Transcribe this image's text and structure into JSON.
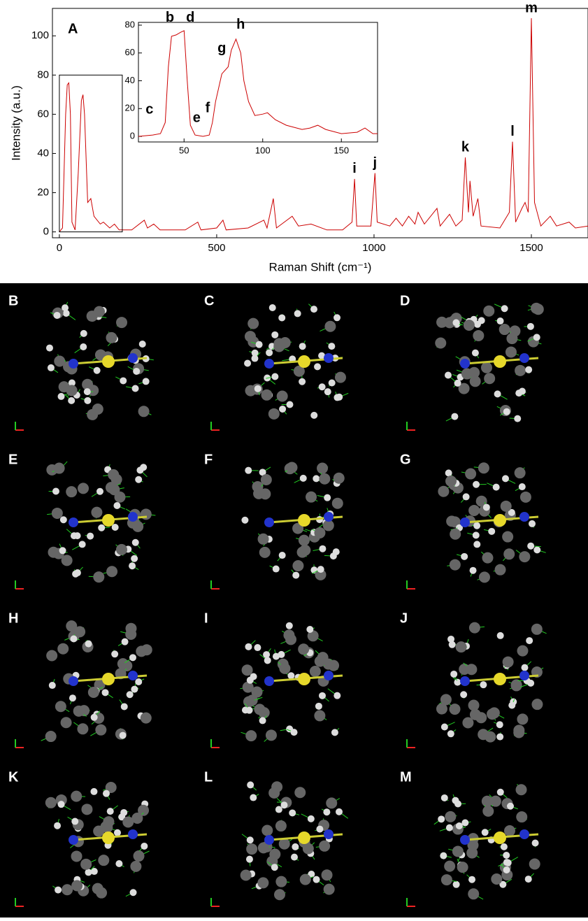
{
  "chart_data": [
    {
      "type": "line",
      "color": "#cc0000",
      "panel_label": "A",
      "x_label": "Raman Shift (cm⁻¹)",
      "y_label": "Intensity (a.u.)",
      "x": [
        0,
        10,
        20,
        25,
        30,
        35,
        40,
        50,
        60,
        70,
        75,
        80,
        90,
        100,
        110,
        130,
        140,
        160,
        175,
        190,
        230,
        270,
        280,
        300,
        320,
        400,
        440,
        450,
        500,
        520,
        530,
        600,
        650,
        660,
        680,
        690,
        740,
        760,
        800,
        850,
        900,
        930,
        938,
        945,
        990,
        1003,
        1010,
        1050,
        1070,
        1090,
        1110,
        1130,
        1140,
        1160,
        1200,
        1210,
        1240,
        1260,
        1280,
        1290,
        1300,
        1305,
        1315,
        1330,
        1340,
        1400,
        1430,
        1440,
        1450,
        1470,
        1480,
        1490,
        1500,
        1510,
        1530,
        1560,
        1580,
        1620,
        1640,
        1680
      ],
      "values": [
        0,
        2,
        60,
        75,
        76,
        60,
        5,
        1,
        30,
        67,
        70,
        60,
        15,
        17,
        8,
        4,
        5,
        2,
        4,
        1,
        1,
        6,
        2,
        4,
        1,
        1,
        5,
        1,
        2,
        6,
        1,
        2,
        6,
        2,
        17,
        2,
        8,
        3,
        4,
        1,
        1,
        5,
        27,
        3,
        3,
        30,
        5,
        3,
        7,
        3,
        8,
        4,
        10,
        4,
        12,
        3,
        9,
        3,
        6,
        38,
        10,
        26,
        8,
        17,
        3,
        2,
        10,
        46,
        5,
        12,
        15,
        10,
        109,
        15,
        3,
        8,
        3,
        5,
        2,
        3
      ],
      "xlim": [
        -22,
        1680
      ],
      "ylim": [
        -3,
        114
      ],
      "xticks": [
        0,
        500,
        1000,
        1500
      ],
      "yticks": [
        0,
        20,
        40,
        60,
        80,
        100
      ],
      "inset_region": {
        "xlim": [
          0,
          200
        ],
        "ylim": [
          0,
          80
        ]
      },
      "annotations": [
        {
          "text": "i",
          "x": 938,
          "y": 27
        },
        {
          "text": "j",
          "x": 1003,
          "y": 30
        },
        {
          "text": "k",
          "x": 1290,
          "y": 38
        },
        {
          "text": "l",
          "x": 1440,
          "y": 46
        },
        {
          "text": "m",
          "x": 1500,
          "y": 109
        }
      ]
    },
    {
      "type": "line",
      "color": "#cc0000",
      "x": [
        21,
        30,
        35,
        38,
        40,
        42,
        45,
        48,
        50,
        52,
        54,
        57,
        62,
        66,
        68,
        70,
        74,
        78,
        80,
        83,
        86,
        88,
        91,
        95,
        100,
        103,
        108,
        115,
        125,
        130,
        135,
        140,
        150,
        160,
        165,
        170,
        173
      ],
      "values": [
        0,
        1,
        2,
        10,
        50,
        72,
        73,
        75,
        76,
        40,
        8,
        1,
        0,
        1,
        10,
        25,
        45,
        50,
        62,
        70,
        60,
        40,
        25,
        15,
        16,
        17,
        12,
        8,
        5,
        6,
        8,
        5,
        2,
        3,
        6,
        2,
        2
      ],
      "xlim": [
        21,
        173
      ],
      "ylim": [
        -4,
        82
      ],
      "xticks": [
        50,
        100,
        150
      ],
      "yticks": [
        0,
        20,
        40,
        60,
        80
      ],
      "annotations": [
        {
          "text": "c",
          "x": 28,
          "y": 12
        },
        {
          "text": "b",
          "x": 41,
          "y": 78
        },
        {
          "text": "d",
          "x": 54,
          "y": 78
        },
        {
          "text": "e",
          "x": 58,
          "y": 6
        },
        {
          "text": "f",
          "x": 65,
          "y": 13
        },
        {
          "text": "g",
          "x": 74,
          "y": 56
        },
        {
          "text": "h",
          "x": 86,
          "y": 73
        }
      ]
    }
  ],
  "panels": [
    "B",
    "C",
    "D",
    "E",
    "F",
    "G",
    "H",
    "I",
    "J",
    "K",
    "L",
    "M"
  ]
}
